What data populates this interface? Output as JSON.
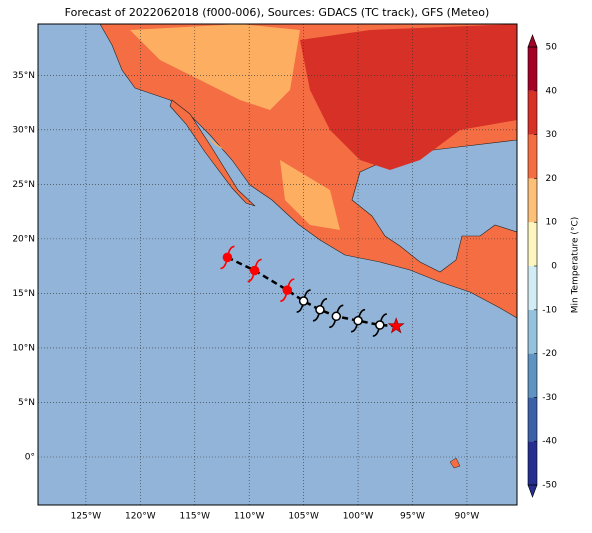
{
  "map": {
    "title": "Forecast of 2022062018 (f000-006), Sources: GDACS (TC track), GFS (Meteo)",
    "xlim": [
      -129.4,
      -85.4
    ],
    "ylim": [
      -4.4,
      39.7
    ],
    "xticks": [
      {
        "value": -125,
        "label": "125°W"
      },
      {
        "value": -120,
        "label": "120°W"
      },
      {
        "value": -115,
        "label": "115°W"
      },
      {
        "value": -110,
        "label": "110°W"
      },
      {
        "value": -105,
        "label": "105°W"
      },
      {
        "value": -100,
        "label": "100°W"
      },
      {
        "value": -95,
        "label": "95°W"
      },
      {
        "value": -90,
        "label": "90°W"
      }
    ],
    "yticks": [
      {
        "value": 35,
        "label": "35°N"
      },
      {
        "value": 30,
        "label": "30°N"
      },
      {
        "value": 25,
        "label": "25°N"
      },
      {
        "value": 20,
        "label": "20°N"
      },
      {
        "value": 15,
        "label": "15°N"
      },
      {
        "value": 10,
        "label": "10°N"
      },
      {
        "value": 5,
        "label": "5°N"
      },
      {
        "value": 0,
        "label": "0°"
      }
    ],
    "colorbar": {
      "label": "Min Temperature (°C)",
      "ticks": [
        -50,
        -40,
        -30,
        -20,
        -10,
        0,
        10,
        20,
        30,
        40,
        50
      ],
      "colors": [
        "#262f8f",
        "#3b62a8",
        "#5f93c2",
        "#95c3dd",
        "#d2ecf3",
        "#fdf6c0",
        "#fdc078",
        "#f46d43",
        "#d73027",
        "#a50026"
      ]
    },
    "track": {
      "lon": [
        -112,
        -109.5,
        -106.5,
        -105,
        -103.5,
        -102,
        -100,
        -98
      ],
      "lat": [
        18.3,
        17.1,
        15.3,
        14.3,
        13.5,
        12.9,
        12.5,
        12.1
      ],
      "colors": [
        "#ff0000",
        "#ff0000",
        "#ff0000",
        "#000000",
        "#000000",
        "#000000",
        "#000000",
        "#000000"
      ]
    },
    "current": {
      "lon": -96.5,
      "lat": 12.0,
      "color": "#ff0000"
    }
  }
}
